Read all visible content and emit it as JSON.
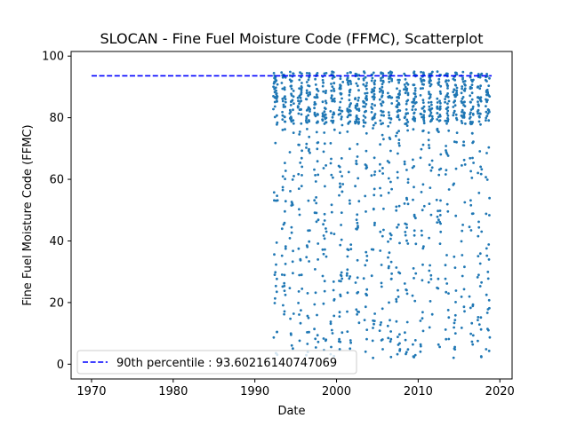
{
  "chart_data": {
    "type": "scatter",
    "title": "SLOCAN - Fine Fuel Moisture Code (FFMC), Scatterplot",
    "xlabel": "Date",
    "ylabel": "Fine Fuel Moisture Code (FFMC)",
    "xlim": [
      1967.5,
      2021.5
    ],
    "ylim": [
      -4.8,
      101.5
    ],
    "xticks": [
      1970,
      1980,
      1990,
      2000,
      2010,
      2020
    ],
    "yticks": [
      0,
      20,
      40,
      60,
      80,
      100
    ],
    "grid": false,
    "legend_position": "lower-left",
    "colors": {
      "points": "#1f77b4",
      "percentile_line": "#0000ff"
    },
    "percentile_line": {
      "label": "90th percentile : 93.60216140747069",
      "y": 93.60216140747069,
      "x_range": [
        1970,
        2019
      ]
    },
    "series": [
      {
        "years": [
          1992,
          1993,
          1994,
          1995,
          1996,
          1997,
          1998,
          1999,
          2000,
          2001,
          2002,
          2003,
          2004,
          2005,
          2006,
          2007,
          2008,
          2009,
          2010,
          2011,
          2012,
          2013,
          2014,
          2015,
          2016,
          2017,
          2018
        ],
        "season_start": 0.27,
        "season_end": 0.78,
        "dense_range": [
          78,
          95
        ],
        "sparse_range": [
          2,
          78
        ]
      }
    ]
  }
}
